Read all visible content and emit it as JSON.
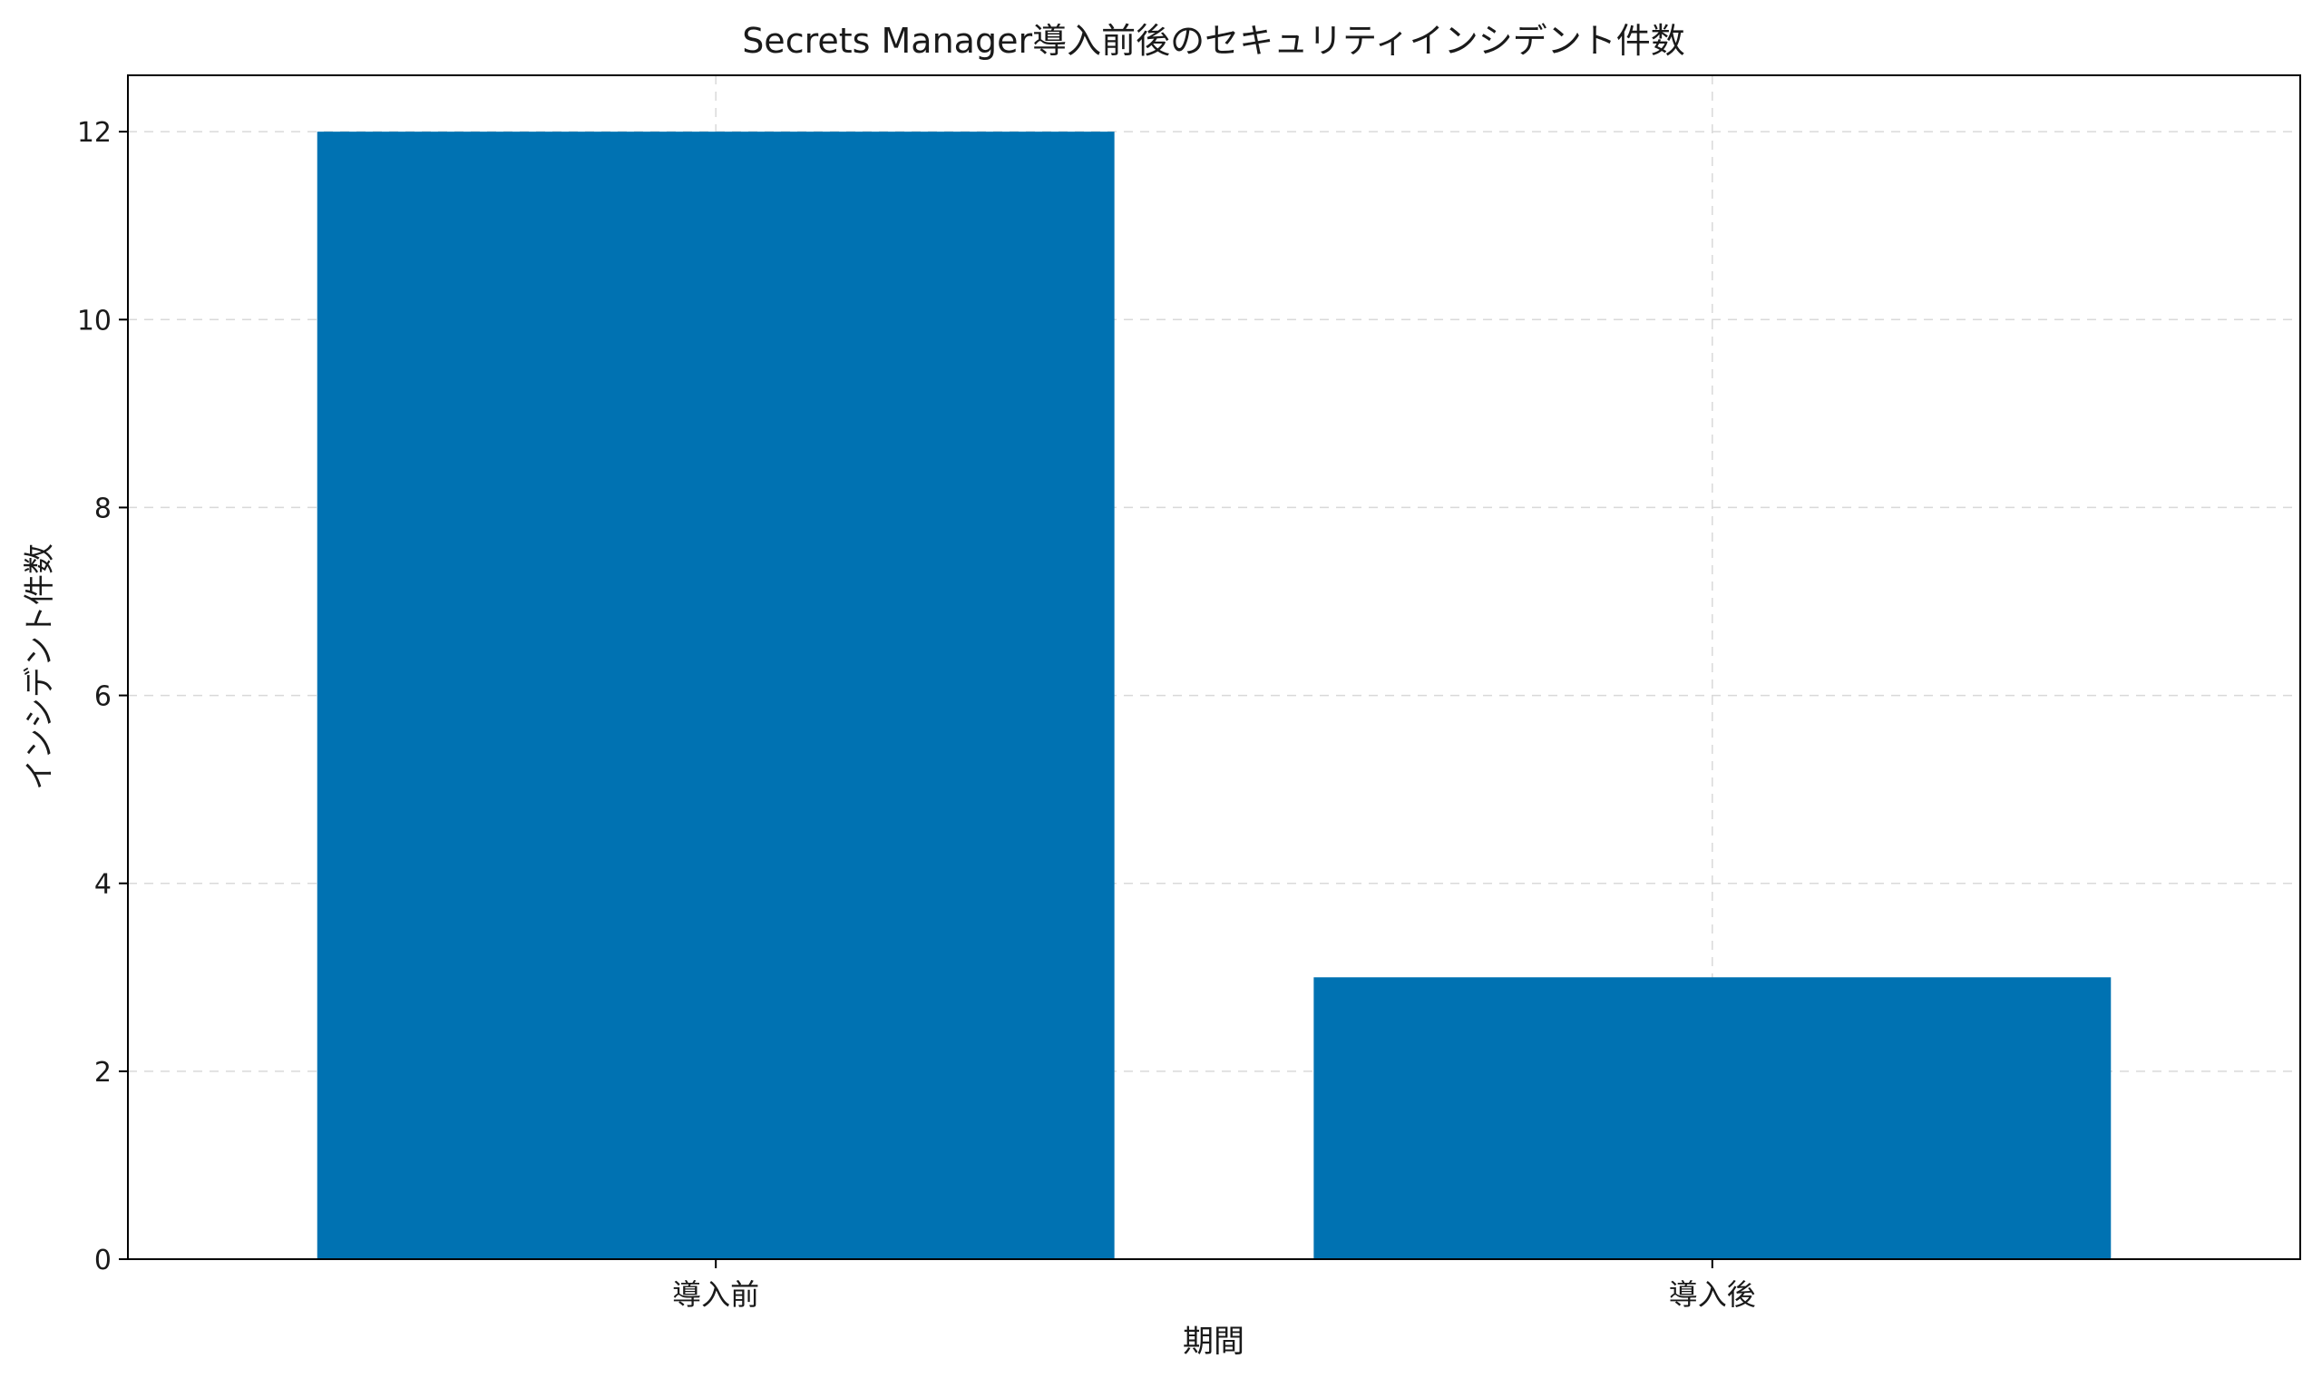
{
  "chart_data": {
    "type": "bar",
    "title": "Secrets Manager導入前後のセキュリティインシデント件数",
    "xlabel": "期間",
    "ylabel": "インシデント件数",
    "categories": [
      "導入前",
      "導入後"
    ],
    "values": [
      12,
      3
    ],
    "ylim": [
      0,
      12.6
    ],
    "yticks": [
      0,
      2,
      4,
      6,
      8,
      10,
      12
    ],
    "grid": true,
    "colors": {
      "bar": "#0072b2",
      "grid": "#d9d9d9",
      "axis": "#000000"
    }
  }
}
